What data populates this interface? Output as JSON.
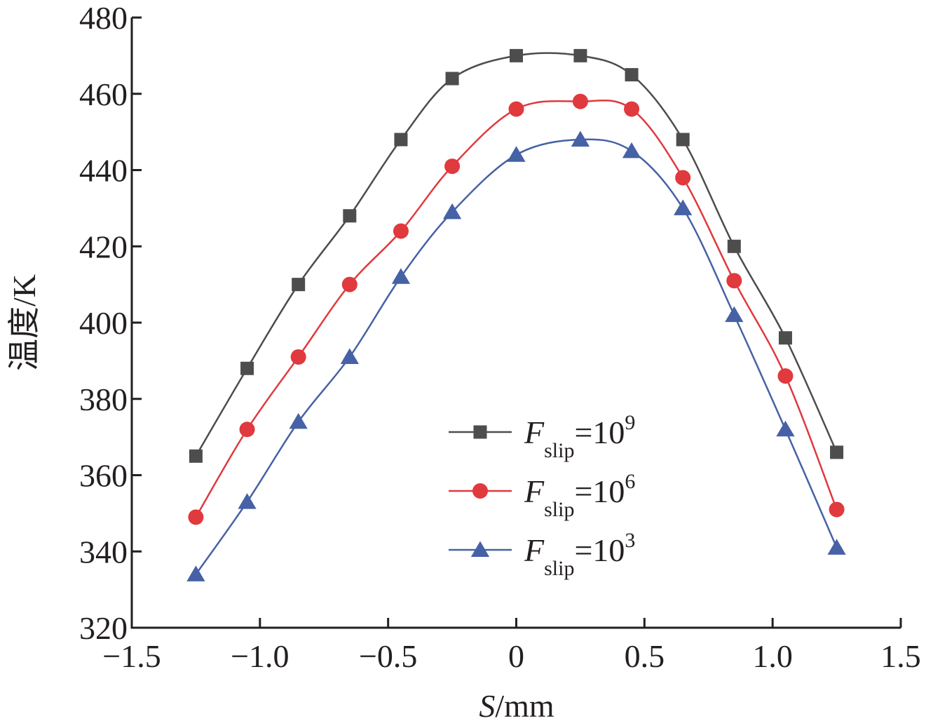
{
  "chart_data": {
    "type": "line",
    "xlabel": {
      "var": "S",
      "unit": "/mm"
    },
    "ylabel": "温度/K",
    "xlim": [
      -1.5,
      1.5
    ],
    "ylim": [
      320,
      480
    ],
    "xticks": [
      -1.5,
      -1.0,
      -0.5,
      0,
      0.5,
      1.0,
      1.5
    ],
    "xtick_labels": [
      "−1.5",
      "−1.0",
      "−0.5",
      "0",
      "0.5",
      "1.0",
      "1.5"
    ],
    "yticks": [
      320,
      340,
      360,
      380,
      400,
      420,
      440,
      460,
      480
    ],
    "ytick_labels": [
      "320",
      "340",
      "360",
      "380",
      "400",
      "420",
      "440",
      "460",
      "480"
    ],
    "x": [
      -1.25,
      -1.05,
      -0.85,
      -0.65,
      -0.45,
      -0.25,
      0,
      0.25,
      0.45,
      0.65,
      0.85,
      1.05,
      1.25
    ],
    "series": [
      {
        "label": {
          "var": "F",
          "sub": "slip",
          "base": "=10",
          "exp": "9"
        },
        "color": "#4d4d4d",
        "marker": "square",
        "values": [
          365,
          388,
          410,
          428,
          448,
          464,
          470,
          470,
          465,
          448,
          420,
          396,
          366
        ]
      },
      {
        "label": {
          "var": "F",
          "sub": "slip",
          "base": "=10",
          "exp": "6"
        },
        "color": "#e0393e",
        "marker": "circle",
        "values": [
          349,
          372,
          391,
          410,
          424,
          441,
          456,
          458,
          456,
          438,
          411,
          386,
          351
        ]
      },
      {
        "label": {
          "var": "F",
          "sub": "slip",
          "base": "=10",
          "exp": "3"
        },
        "color": "#4661a5",
        "marker": "triangle",
        "values": [
          334,
          353,
          374,
          391,
          412,
          429,
          444,
          448,
          445,
          430,
          402,
          372,
          341
        ]
      }
    ],
    "legend_position": "bottom-center",
    "grid": false
  }
}
